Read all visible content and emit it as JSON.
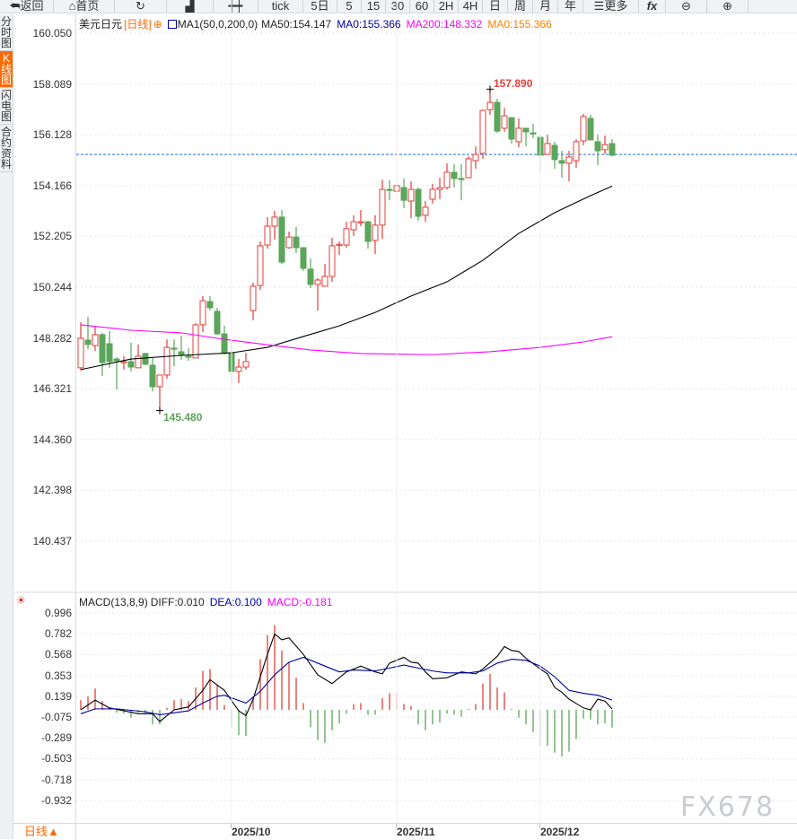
{
  "toolbar": {
    "back": "返回",
    "home": "首页",
    "tick": "tick",
    "p5d": "5日",
    "m5": "5",
    "m15": "15",
    "m30": "30",
    "m60": "60",
    "h2": "2H",
    "h4": "4H",
    "day": "日",
    "week": "周",
    "month": "月",
    "year": "年",
    "more": "更多",
    "fx": "fx"
  },
  "sidebar": {
    "items": [
      "分时图",
      "K线图",
      "闪电图",
      "合约资料"
    ],
    "active": 1
  },
  "legend": {
    "symbol": "美元日元",
    "period": "[日线]",
    "ma_name": "MA1(50,0,200,0)",
    "ma50": "MA50:154.147",
    "ma0a": "MA0:155.366",
    "ma200": "MA200:148.332",
    "ma0b": "MA0:155.366"
  },
  "macd_legend": {
    "name": "MACD(13,8,9)",
    "diff": "DIFF:0.010",
    "dea": "DEA:0.100",
    "macd": "MACD:-0.181"
  },
  "colors": {
    "up": "#e0403c",
    "down": "#5ba65a",
    "ma50": "#000000",
    "ma200": "#ff00ff",
    "diff": "#000000",
    "dea": "#0000a0",
    "accent": "#ff6a00",
    "last_line": "#1e6fd9"
  },
  "bottom": {
    "period": "日线▲",
    "dates": [
      "2025/10",
      "2025/11",
      "2025/12"
    ]
  },
  "watermark": "FX678",
  "chart_data": [
    {
      "type": "candlestick",
      "ylim": [
        140.437,
        160.05
      ],
      "yticks": [
        "160.050",
        "158.089",
        "156.128",
        "154.166",
        "152.205",
        "150.244",
        "148.282",
        "146.321",
        "144.360",
        "142.398",
        "140.437"
      ],
      "x_tick_labels": [
        {
          "label": "2025/10",
          "index": 21
        },
        {
          "label": "2025/11",
          "index": 44
        },
        {
          "label": "2025/12",
          "index": 64
        }
      ],
      "ohlc": [
        [
          147.13,
          148.89,
          147.02,
          148.27
        ],
        [
          148.2,
          149.1,
          147.85,
          148.03
        ],
        [
          147.99,
          148.72,
          147.78,
          148.41
        ],
        [
          148.41,
          148.48,
          146.81,
          147.33
        ],
        [
          148.06,
          148.55,
          147.13,
          147.37
        ],
        [
          147.47,
          147.54,
          146.29,
          147.4
        ],
        [
          147.33,
          147.58,
          147.06,
          147.37
        ],
        [
          147.37,
          148.1,
          146.99,
          147.16
        ],
        [
          147.13,
          148.03,
          147.13,
          147.58
        ],
        [
          147.68,
          147.71,
          147.23,
          147.27
        ],
        [
          147.23,
          147.51,
          146.22,
          146.4
        ],
        [
          146.4,
          146.85,
          145.48,
          146.85
        ],
        [
          146.85,
          148.23,
          146.71,
          147.92
        ],
        [
          147.89,
          148.23,
          147.2,
          147.88
        ],
        [
          147.75,
          148.37,
          147.44,
          147.64
        ],
        [
          147.58,
          147.89,
          147.4,
          147.57
        ],
        [
          147.51,
          148.86,
          147.51,
          148.79
        ],
        [
          148.79,
          149.9,
          148.51,
          149.72
        ],
        [
          149.69,
          149.9,
          149.34,
          149.45
        ],
        [
          149.31,
          149.45,
          148.41,
          148.44
        ],
        [
          148.44,
          148.75,
          147.64,
          147.71
        ],
        [
          147.71,
          148.16,
          146.54,
          146.99
        ],
        [
          146.99,
          147.47,
          146.54,
          147.16
        ],
        [
          147.16,
          147.71,
          147.06,
          147.37
        ],
        [
          149.34,
          150.42,
          148.96,
          150.28
        ],
        [
          150.31,
          152.01,
          150.14,
          151.84
        ],
        [
          151.87,
          152.95,
          151.73,
          152.6
        ],
        [
          152.6,
          153.19,
          152.08,
          152.95
        ],
        [
          152.95,
          153.22,
          151.14,
          151.21
        ],
        [
          151.77,
          152.39,
          151.73,
          152.18
        ],
        [
          152.18,
          152.57,
          151.56,
          151.77
        ],
        [
          151.77,
          151.77,
          150.87,
          150.97
        ],
        [
          150.94,
          151.35,
          150.21,
          150.35
        ],
        [
          150.35,
          150.59,
          149.34,
          150.52
        ],
        [
          150.28,
          151.14,
          150.28,
          150.66
        ],
        [
          150.66,
          152.15,
          150.45,
          151.84
        ],
        [
          151.87,
          152.01,
          151.49,
          151.9
        ],
        [
          151.87,
          152.77,
          151.77,
          152.5
        ],
        [
          152.46,
          153.02,
          152.22,
          152.77
        ],
        [
          152.74,
          153.22,
          152.6,
          152.77
        ],
        [
          152.77,
          152.81,
          151.73,
          152.01
        ],
        [
          152.05,
          153.02,
          151.52,
          152.64
        ],
        [
          152.64,
          154.4,
          152.11,
          154.02
        ],
        [
          154.02,
          154.37,
          153.6,
          154.0
        ],
        [
          153.95,
          154.26,
          153.92,
          154.16
        ],
        [
          154.09,
          154.44,
          153.29,
          153.6
        ],
        [
          153.57,
          154.33,
          152.91,
          154.02
        ],
        [
          154.02,
          154.09,
          152.81,
          152.98
        ],
        [
          153.02,
          153.57,
          152.77,
          153.33
        ],
        [
          153.64,
          154.23,
          153.47,
          154.02
        ],
        [
          154.02,
          154.47,
          153.64,
          154.09
        ],
        [
          154.09,
          155.03,
          154.02,
          154.68
        ],
        [
          154.68,
          155.0,
          154.09,
          154.44
        ],
        [
          154.44,
          155.0,
          153.6,
          154.42
        ],
        [
          154.47,
          155.3,
          154.47,
          155.2
        ],
        [
          155.13,
          155.68,
          154.82,
          155.37
        ],
        [
          155.41,
          157.1,
          155.2,
          157.07
        ],
        [
          157.1,
          157.89,
          156.9,
          157.38
        ],
        [
          157.38,
          157.52,
          156.2,
          156.27
        ],
        [
          156.38,
          157.17,
          156.24,
          156.86
        ],
        [
          156.79,
          156.79,
          155.79,
          155.96
        ],
        [
          155.86,
          156.76,
          155.65,
          156.38
        ],
        [
          156.38,
          156.38,
          155.68,
          156.24
        ],
        [
          156.2,
          156.55,
          156.0,
          156.17
        ],
        [
          156.03,
          156.13,
          154.64,
          155.34
        ],
        [
          155.37,
          156.13,
          155.37,
          155.79
        ],
        [
          155.72,
          155.86,
          154.82,
          155.17
        ],
        [
          155.13,
          155.51,
          154.47,
          155.03
        ],
        [
          155.03,
          155.51,
          154.33,
          155.27
        ],
        [
          155.13,
          155.96,
          154.85,
          155.86
        ],
        [
          155.89,
          156.93,
          155.72,
          156.83
        ],
        [
          156.76,
          156.9,
          155.93,
          155.93
        ],
        [
          155.86,
          156.13,
          154.96,
          155.51
        ],
        [
          155.55,
          156.1,
          155.37,
          155.75
        ],
        [
          155.79,
          155.96,
          155.3,
          155.34
        ]
      ],
      "last_price": 155.366,
      "annotations": [
        {
          "text": "157.890",
          "index": 57,
          "price": 157.89
        },
        {
          "text": "145.480",
          "index": 11,
          "price": 145.48
        }
      ],
      "series": [
        {
          "name": "MA50",
          "points": [
            [
              0,
              147.06
            ],
            [
              7,
              147.47
            ],
            [
              14,
              147.61
            ],
            [
              21,
              147.71
            ],
            [
              26,
              147.92
            ],
            [
              31,
              148.34
            ],
            [
              36,
              148.75
            ],
            [
              41,
              149.27
            ],
            [
              46,
              149.9
            ],
            [
              51,
              150.45
            ],
            [
              56,
              151.28
            ],
            [
              61,
              152.32
            ],
            [
              66,
              153.12
            ],
            [
              71,
              153.78
            ],
            [
              74,
              154.147
            ]
          ]
        },
        {
          "name": "MA200",
          "points": [
            [
              0,
              148.79
            ],
            [
              7,
              148.58
            ],
            [
              14,
              148.48
            ],
            [
              20,
              148.23
            ],
            [
              26,
              148.02
            ],
            [
              32,
              147.82
            ],
            [
              39,
              147.68
            ],
            [
              49,
              147.64
            ],
            [
              57,
              147.75
            ],
            [
              64,
              147.92
            ],
            [
              70,
              148.13
            ],
            [
              74,
              148.332
            ]
          ]
        }
      ]
    },
    {
      "type": "macd",
      "ylim": [
        -0.932,
        0.996
      ],
      "yticks": [
        "0.996",
        "0.782",
        "0.568",
        "0.353",
        "0.139",
        "-0.075",
        "-0.289",
        "-0.503",
        "-0.718",
        "-0.932"
      ],
      "hist": [
        0.1,
        0.14,
        0.22,
        0.09,
        0.02,
        -0.03,
        -0.04,
        -0.08,
        -0.03,
        -0.04,
        -0.15,
        -0.15,
        0.02,
        0.1,
        0.11,
        0.09,
        0.23,
        0.4,
        0.42,
        0.26,
        0.05,
        -0.18,
        -0.26,
        -0.27,
        0.12,
        0.52,
        0.77,
        0.87,
        0.61,
        0.49,
        0.33,
        0.07,
        -0.18,
        -0.31,
        -0.34,
        -0.21,
        -0.14,
        -0.04,
        0.06,
        0.07,
        -0.05,
        -0.05,
        0.12,
        0.17,
        0.17,
        0.06,
        0.04,
        -0.15,
        -0.21,
        -0.15,
        -0.13,
        -0.04,
        -0.05,
        -0.07,
        0.01,
        0.06,
        0.27,
        0.37,
        0.23,
        0.18,
        0.01,
        -0.08,
        -0.15,
        -0.23,
        -0.37,
        -0.37,
        -0.44,
        -0.48,
        -0.43,
        -0.3,
        -0.09,
        -0.1,
        -0.15,
        -0.14,
        -0.181
      ],
      "series": [
        {
          "name": "DIFF",
          "points": [
            [
              0,
              0.0
            ],
            [
              2,
              0.1
            ],
            [
              4,
              0.02
            ],
            [
              8,
              -0.04
            ],
            [
              10,
              -0.04
            ],
            [
              11,
              -0.12
            ],
            [
              13,
              0.0
            ],
            [
              15,
              0.03
            ],
            [
              17,
              0.2
            ],
            [
              18,
              0.31
            ],
            [
              20,
              0.2
            ],
            [
              22,
              -0.01
            ],
            [
              23,
              -0.06
            ],
            [
              24,
              0.11
            ],
            [
              26,
              0.57
            ],
            [
              27,
              0.78
            ],
            [
              28,
              0.72
            ],
            [
              29,
              0.74
            ],
            [
              31,
              0.57
            ],
            [
              33,
              0.36
            ],
            [
              35,
              0.27
            ],
            [
              37,
              0.39
            ],
            [
              39,
              0.45
            ],
            [
              41,
              0.39
            ],
            [
              42,
              0.37
            ],
            [
              43,
              0.48
            ],
            [
              45,
              0.54
            ],
            [
              46,
              0.49
            ],
            [
              47,
              0.48
            ],
            [
              48,
              0.39
            ],
            [
              49,
              0.32
            ],
            [
              51,
              0.33
            ],
            [
              53,
              0.39
            ],
            [
              55,
              0.37
            ],
            [
              56,
              0.42
            ],
            [
              58,
              0.55
            ],
            [
              59,
              0.65
            ],
            [
              60,
              0.61
            ],
            [
              61,
              0.6
            ],
            [
              62,
              0.53
            ],
            [
              64,
              0.42
            ],
            [
              65,
              0.37
            ],
            [
              66,
              0.23
            ],
            [
              67,
              0.18
            ],
            [
              68,
              0.11
            ],
            [
              70,
              0.02
            ],
            [
              71,
              0.0
            ],
            [
              72,
              0.11
            ],
            [
              73,
              0.09
            ],
            [
              74,
              0.01
            ]
          ]
        },
        {
          "name": "DEA",
          "points": [
            [
              0,
              -0.04
            ],
            [
              2,
              0.01
            ],
            [
              5,
              0.01
            ],
            [
              9,
              -0.02
            ],
            [
              11,
              -0.05
            ],
            [
              15,
              -0.01
            ],
            [
              17,
              0.07
            ],
            [
              19,
              0.14
            ],
            [
              20,
              0.15
            ],
            [
              23,
              0.07
            ],
            [
              25,
              0.19
            ],
            [
              27,
              0.36
            ],
            [
              29,
              0.49
            ],
            [
              31,
              0.54
            ],
            [
              33,
              0.48
            ],
            [
              35,
              0.42
            ],
            [
              36,
              0.39
            ],
            [
              38,
              0.41
            ],
            [
              41,
              0.4
            ],
            [
              43,
              0.43
            ],
            [
              45,
              0.46
            ],
            [
              47,
              0.43
            ],
            [
              49,
              0.4
            ],
            [
              51,
              0.38
            ],
            [
              54,
              0.38
            ],
            [
              56,
              0.4
            ],
            [
              58,
              0.48
            ],
            [
              60,
              0.52
            ],
            [
              62,
              0.51
            ],
            [
              64,
              0.45
            ],
            [
              66,
              0.34
            ],
            [
              68,
              0.2
            ],
            [
              70,
              0.17
            ],
            [
              72,
              0.15
            ],
            [
              74,
              0.1
            ]
          ]
        }
      ]
    }
  ]
}
